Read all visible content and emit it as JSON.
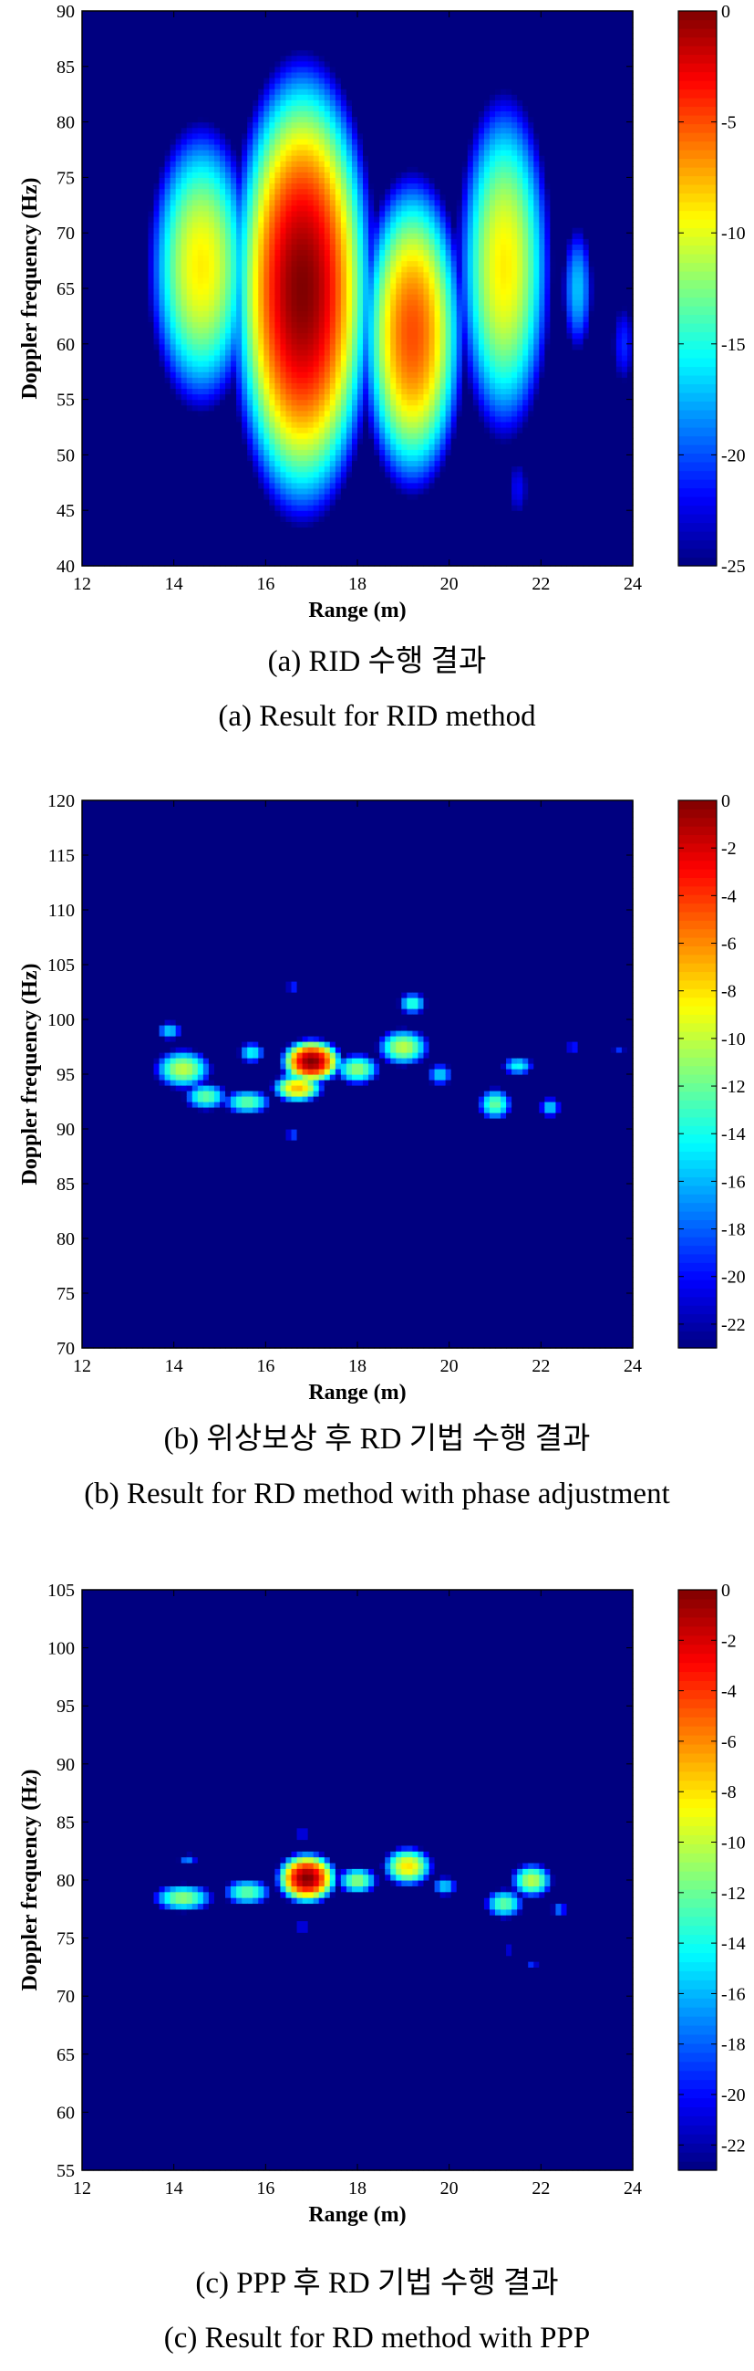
{
  "colors": {
    "background": "#00007f",
    "peak": "#7f0000"
  },
  "chart_data": [
    {
      "type": "heatmap",
      "title": "",
      "xlabel": "Range (m)",
      "ylabel": "Doppler frequency (Hz)",
      "xlim": [
        12,
        24
      ],
      "ylim": [
        40,
        90
      ],
      "xticks": [
        "12",
        "14",
        "16",
        "18",
        "20",
        "22",
        "24"
      ],
      "yticks": [
        "40",
        "45",
        "50",
        "55",
        "60",
        "65",
        "70",
        "75",
        "80",
        "85",
        "90"
      ],
      "colorbar": {
        "range": [
          -25,
          0
        ],
        "ticks": [
          "0",
          "-5",
          "-10",
          "-15",
          "-20",
          "-25"
        ],
        "tick_values": [
          0,
          -5,
          -10,
          -15,
          -20,
          -25
        ]
      },
      "blobs": [
        {
          "x": 14.6,
          "y": 67,
          "sx": 0.9,
          "sy": 10,
          "peak": -9
        },
        {
          "x": 16.8,
          "y": 65,
          "sx": 1.0,
          "sy": 13,
          "peak": 0
        },
        {
          "x": 19.2,
          "y": 61,
          "sx": 0.8,
          "sy": 10,
          "peak": -5
        },
        {
          "x": 21.2,
          "y": 67,
          "sx": 0.8,
          "sy": 12,
          "peak": -9
        },
        {
          "x": 22.8,
          "y": 65,
          "sx": 0.35,
          "sy": 6,
          "peak": -17
        },
        {
          "x": 23.8,
          "y": 60,
          "sx": 0.35,
          "sy": 5,
          "peak": -21
        },
        {
          "x": 21.5,
          "y": 47,
          "sx": 0.35,
          "sy": 4,
          "peak": -22
        }
      ],
      "caption_ko": "(a) RID 수행 결과",
      "caption_en": "(a) Result for RID method"
    },
    {
      "type": "heatmap",
      "title": "",
      "xlabel": "Range (m)",
      "ylabel": "Doppler frequency (Hz)",
      "xlim": [
        12,
        24
      ],
      "ylim": [
        70,
        120
      ],
      "xticks": [
        "12",
        "14",
        "16",
        "18",
        "20",
        "22",
        "24"
      ],
      "yticks": [
        "70",
        "75",
        "80",
        "85",
        "90",
        "95",
        "100",
        "105",
        "110",
        "115",
        "120"
      ],
      "colorbar": {
        "range": [
          -23,
          0
        ],
        "ticks": [
          "0",
          "-2",
          "-4",
          "-6",
          "-8",
          "-10",
          "-12",
          "-14",
          "-16",
          "-18",
          "-20",
          "-22"
        ],
        "tick_values": [
          0,
          -2,
          -4,
          -6,
          -8,
          -10,
          -12,
          -14,
          -16,
          -18,
          -20,
          -22
        ]
      },
      "blobs": [
        {
          "x": 17.0,
          "y": 96.2,
          "sx": 0.45,
          "sy": 1.4,
          "peak": 0
        },
        {
          "x": 16.7,
          "y": 93.8,
          "sx": 0.45,
          "sy": 1.1,
          "peak": -7
        },
        {
          "x": 14.2,
          "y": 95.5,
          "sx": 0.55,
          "sy": 1.6,
          "peak": -10
        },
        {
          "x": 14.7,
          "y": 93,
          "sx": 0.45,
          "sy": 1.2,
          "peak": -12
        },
        {
          "x": 13.9,
          "y": 99,
          "sx": 0.3,
          "sy": 0.9,
          "peak": -15
        },
        {
          "x": 15.6,
          "y": 92.5,
          "sx": 0.5,
          "sy": 1.1,
          "peak": -12
        },
        {
          "x": 15.7,
          "y": 97,
          "sx": 0.3,
          "sy": 1.0,
          "peak": -14
        },
        {
          "x": 18.0,
          "y": 95.5,
          "sx": 0.45,
          "sy": 1.3,
          "peak": -11
        },
        {
          "x": 19.0,
          "y": 97.5,
          "sx": 0.5,
          "sy": 1.5,
          "peak": -10
        },
        {
          "x": 19.2,
          "y": 101.5,
          "sx": 0.3,
          "sy": 1.0,
          "peak": -13
        },
        {
          "x": 19.8,
          "y": 95,
          "sx": 0.3,
          "sy": 1.1,
          "peak": -15
        },
        {
          "x": 21.0,
          "y": 92.3,
          "sx": 0.35,
          "sy": 1.4,
          "peak": -12
        },
        {
          "x": 21.5,
          "y": 95.8,
          "sx": 0.35,
          "sy": 0.9,
          "peak": -14
        },
        {
          "x": 22.2,
          "y": 92,
          "sx": 0.25,
          "sy": 1.0,
          "peak": -15
        },
        {
          "x": 22.7,
          "y": 97.5,
          "sx": 0.2,
          "sy": 0.6,
          "peak": -18
        },
        {
          "x": 23.7,
          "y": 97.2,
          "sx": 0.2,
          "sy": 0.6,
          "peak": -19
        },
        {
          "x": 16.6,
          "y": 103,
          "sx": 0.2,
          "sy": 0.6,
          "peak": -18
        },
        {
          "x": 16.6,
          "y": 89.5,
          "sx": 0.2,
          "sy": 0.8,
          "peak": -18
        }
      ],
      "caption_ko": "(b) 위상보상 후 RD 기법 수행 결과",
      "caption_en": "(b) Result for RD method with phase adjustment"
    },
    {
      "type": "heatmap",
      "title": "",
      "xlabel": "Range (m)",
      "ylabel": "Doppler frequency (Hz)",
      "xlim": [
        12,
        24
      ],
      "ylim": [
        55,
        105
      ],
      "xticks": [
        "12",
        "14",
        "16",
        "18",
        "20",
        "22",
        "24"
      ],
      "yticks": [
        "55",
        "60",
        "65",
        "70",
        "75",
        "80",
        "85",
        "90",
        "95",
        "100",
        "105"
      ],
      "colorbar": {
        "range": [
          -23,
          0
        ],
        "ticks": [
          "0",
          "-2",
          "-4",
          "-6",
          "-8",
          "-10",
          "-12",
          "-14",
          "-16",
          "-18",
          "-20",
          "-22"
        ],
        "tick_values": [
          0,
          -2,
          -4,
          -6,
          -8,
          -10,
          -12,
          -14,
          -16,
          -18,
          -20,
          -22
        ]
      },
      "blobs": [
        {
          "x": 16.9,
          "y": 80.2,
          "sx": 0.45,
          "sy": 1.5,
          "peak": 0
        },
        {
          "x": 14.2,
          "y": 78.5,
          "sx": 0.6,
          "sy": 1.1,
          "peak": -11
        },
        {
          "x": 15.6,
          "y": 79,
          "sx": 0.5,
          "sy": 1.1,
          "peak": -12
        },
        {
          "x": 18.0,
          "y": 80,
          "sx": 0.4,
          "sy": 1.1,
          "peak": -11
        },
        {
          "x": 19.1,
          "y": 81.2,
          "sx": 0.45,
          "sy": 1.4,
          "peak": -8
        },
        {
          "x": 19.9,
          "y": 79.5,
          "sx": 0.3,
          "sy": 0.9,
          "peak": -15
        },
        {
          "x": 21.8,
          "y": 80,
          "sx": 0.4,
          "sy": 1.3,
          "peak": -10
        },
        {
          "x": 21.2,
          "y": 78,
          "sx": 0.4,
          "sy": 1.2,
          "peak": -12
        },
        {
          "x": 22.4,
          "y": 77.5,
          "sx": 0.2,
          "sy": 0.8,
          "peak": -17
        },
        {
          "x": 14.3,
          "y": 81.8,
          "sx": 0.25,
          "sy": 0.6,
          "peak": -17
        },
        {
          "x": 16.8,
          "y": 84,
          "sx": 0.2,
          "sy": 0.5,
          "peak": -18
        },
        {
          "x": 16.8,
          "y": 76,
          "sx": 0.2,
          "sy": 0.5,
          "peak": -18
        },
        {
          "x": 21.3,
          "y": 74,
          "sx": 0.2,
          "sy": 0.5,
          "peak": -19
        },
        {
          "x": 21.8,
          "y": 72.8,
          "sx": 0.2,
          "sy": 0.5,
          "peak": -19
        }
      ],
      "caption_ko": "(c) PPP 후 RD 기법 수행 결과",
      "caption_en": "(c) Result for RD method with PPP"
    }
  ]
}
